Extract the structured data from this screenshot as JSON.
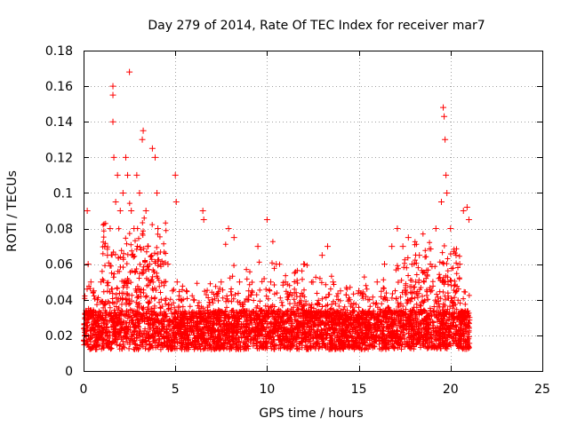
{
  "chart_data": {
    "type": "scatter",
    "title": "Day 279 of 2014, Rate Of TEC Index for receiver mar7",
    "xlabel": "GPS time / hours",
    "ylabel": "ROTI / TECUs",
    "xlim": [
      0,
      25
    ],
    "ylim": [
      0,
      0.18
    ],
    "grid": true,
    "marker": "+",
    "color": "#ff0000",
    "x_ticks": [
      0,
      5,
      10,
      15,
      20,
      25
    ],
    "x_tick_labels": [
      "0",
      "5",
      "10",
      "15",
      "20",
      "25"
    ],
    "y_ticks": [
      0,
      0.02,
      0.04,
      0.06,
      0.08,
      0.1,
      0.12,
      0.14,
      0.16,
      0.18
    ],
    "y_tick_labels": [
      "0",
      "0.02",
      "0.04",
      "0.06",
      "0.08",
      "0.1",
      "0.12",
      "0.14",
      "0.16",
      "0.18"
    ],
    "series": [
      {
        "name": "ROTI",
        "x": [
          0.1,
          0.2,
          0.25,
          0.4,
          0.55,
          0.75,
          0.95,
          1.15,
          1.3,
          1.45,
          1.6,
          1.6,
          1.6,
          1.65,
          1.75,
          1.85,
          2.0,
          2.15,
          2.3,
          2.4,
          2.5,
          2.6,
          2.75,
          2.9,
          3.05,
          3.2,
          3.25,
          3.4,
          3.5,
          3.6,
          3.75,
          3.9,
          4.0,
          4.05,
          4.2,
          4.4,
          4.6,
          4.85,
          5.0,
          5.05,
          5.1,
          5.3,
          5.6,
          6.0,
          6.5,
          6.55,
          7.0,
          7.5,
          7.9,
          8.2,
          8.5,
          9.0,
          9.5,
          10.0,
          10.2,
          10.5,
          11.0,
          11.5,
          12.0,
          12.5,
          13.0,
          13.3,
          13.6,
          14.0,
          14.5,
          15.0,
          15.5,
          16.0,
          16.4,
          16.8,
          17.1,
          17.4,
          17.7,
          17.9,
          18.1,
          18.3,
          18.6,
          18.9,
          19.2,
          19.5,
          19.6,
          19.65,
          19.7,
          19.75,
          19.8,
          20.0,
          20.3,
          20.5,
          20.7,
          20.9,
          21.0
        ],
        "y": [
          0.03,
          0.09,
          0.06,
          0.05,
          0.045,
          0.04,
          0.05,
          0.07,
          0.065,
          0.08,
          0.16,
          0.155,
          0.14,
          0.12,
          0.095,
          0.11,
          0.09,
          0.1,
          0.12,
          0.11,
          0.168,
          0.09,
          0.08,
          0.11,
          0.1,
          0.13,
          0.135,
          0.09,
          0.07,
          0.06,
          0.125,
          0.12,
          0.1,
          0.08,
          0.06,
          0.05,
          0.06,
          0.045,
          0.11,
          0.095,
          0.05,
          0.04,
          0.045,
          0.04,
          0.09,
          0.085,
          0.04,
          0.05,
          0.08,
          0.075,
          0.05,
          0.045,
          0.07,
          0.085,
          0.05,
          0.06,
          0.05,
          0.055,
          0.06,
          0.05,
          0.065,
          0.07,
          0.05,
          0.045,
          0.04,
          0.045,
          0.04,
          0.05,
          0.06,
          0.07,
          0.08,
          0.07,
          0.075,
          0.06,
          0.05,
          0.065,
          0.055,
          0.06,
          0.08,
          0.095,
          0.148,
          0.143,
          0.13,
          0.11,
          0.1,
          0.08,
          0.065,
          0.06,
          0.09,
          0.092,
          0.085
        ]
      }
    ]
  }
}
